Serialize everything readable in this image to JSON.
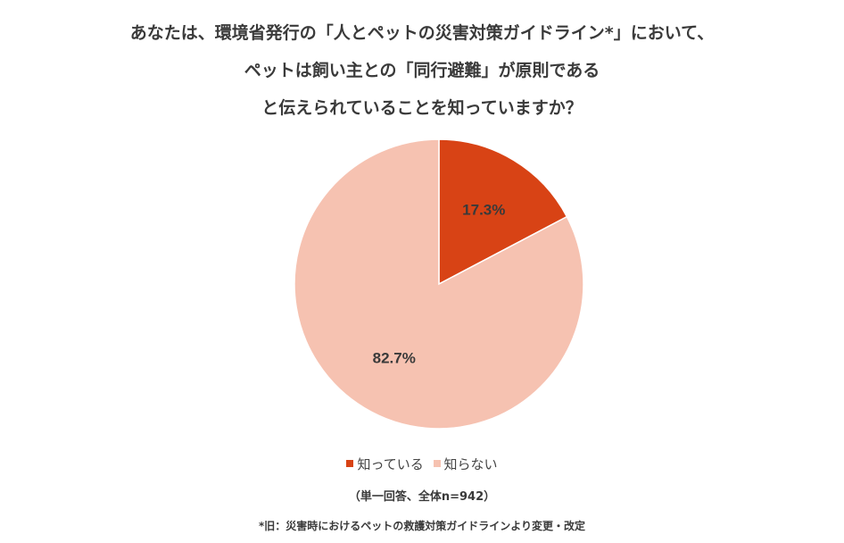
{
  "title_lines": [
    "あなたは、環境省発行の「人とペットの災害対策ガイドライン*」において、",
    "ペットは飼い主との「同行避難」が原則である",
    "と伝えられていることを知っていますか？"
  ],
  "chart_data": {
    "type": "pie",
    "categories": [
      "知っている",
      "知らない"
    ],
    "values": [
      17.3,
      82.7
    ],
    "labels": [
      "17.3%",
      "82.7%"
    ],
    "colors": [
      "#d84315",
      "#f6c2b1"
    ],
    "start_angle": "12 o'clock, clockwise",
    "legend_position": "bottom"
  },
  "sample_note": "（単一回答、全体n=942）",
  "footnote": "*旧：災害時におけるペットの救護対策ガイドラインより変更・改定"
}
